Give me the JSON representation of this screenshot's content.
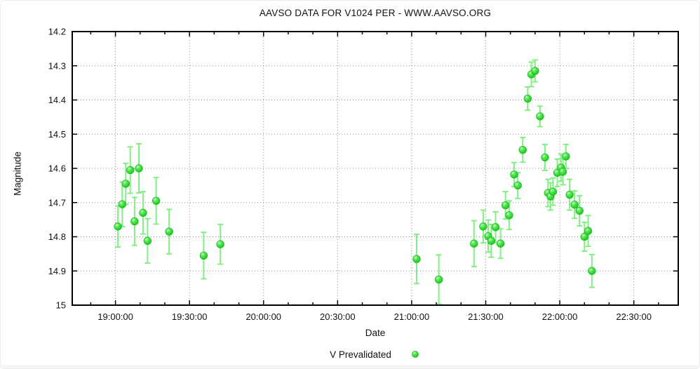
{
  "chart_data": {
    "type": "scatter",
    "title": "AAVSO DATA FOR V1024 PER - WWW.AAVSO.ORG",
    "xlabel": "Date",
    "ylabel": "Magnitude",
    "y_inverted": true,
    "ylim": [
      14.2,
      15.0
    ],
    "y_tick_labels": [
      "14.2",
      "14.3",
      "14.4",
      "14.5",
      "14.6",
      "14.7",
      "14.8",
      "14.9",
      "15"
    ],
    "x_tick_labels": [
      "19:00:00",
      "19:30:00",
      "20:00:00",
      "20:30:00",
      "21:00:00",
      "21:30:00",
      "22:00:00",
      "22:30:00"
    ],
    "x_range_minutes": [
      1122.5,
      1368
    ],
    "x_major_tick_minutes": 30,
    "x_minor_tick_minutes": 10,
    "grid": "dotted",
    "legend": {
      "label": "V Prevalidated",
      "position": "bottom-center"
    },
    "colors": {
      "marker": "#2ed32e",
      "marker_edge": "#1fbd1f",
      "marker_highlight": "#d6ffd6",
      "error_bar": "#82ef82",
      "axis": "#000000",
      "grid": "#8a8a8a",
      "text": "#111111",
      "background": "#ffffff"
    },
    "series": [
      {
        "name": "V Prevalidated",
        "marker": "circle",
        "points": [
          {
            "time": "19:01:00",
            "mag": 14.77,
            "err": 0.06
          },
          {
            "time": "19:02:45",
            "mag": 14.705,
            "err": 0.065
          },
          {
            "time": "19:04:10",
            "mag": 14.645,
            "err": 0.06
          },
          {
            "time": "19:06:00",
            "mag": 14.605,
            "err": 0.068
          },
          {
            "time": "19:07:45",
            "mag": 14.755,
            "err": 0.07
          },
          {
            "time": "19:09:30",
            "mag": 14.6,
            "err": 0.072
          },
          {
            "time": "19:11:10",
            "mag": 14.73,
            "err": 0.062
          },
          {
            "time": "19:13:00",
            "mag": 14.812,
            "err": 0.065
          },
          {
            "time": "19:16:30",
            "mag": 14.695,
            "err": 0.068
          },
          {
            "time": "19:21:45",
            "mag": 14.785,
            "err": 0.065
          },
          {
            "time": "19:35:45",
            "mag": 14.855,
            "err": 0.068
          },
          {
            "time": "19:42:30",
            "mag": 14.822,
            "err": 0.058
          },
          {
            "time": "21:02:00",
            "mag": 14.865,
            "err": 0.072
          },
          {
            "time": "21:11:00",
            "mag": 14.925,
            "err": 0.072
          },
          {
            "time": "21:25:15",
            "mag": 14.82,
            "err": 0.067
          },
          {
            "time": "21:29:00",
            "mag": 14.77,
            "err": 0.048
          },
          {
            "time": "21:31:00",
            "mag": 14.798,
            "err": 0.047
          },
          {
            "time": "21:32:15",
            "mag": 14.812,
            "err": 0.048
          },
          {
            "time": "21:34:00",
            "mag": 14.772,
            "err": 0.045
          },
          {
            "time": "21:36:00",
            "mag": 14.82,
            "err": 0.043
          },
          {
            "time": "21:38:00",
            "mag": 14.708,
            "err": 0.04
          },
          {
            "time": "21:39:30",
            "mag": 14.737,
            "err": 0.042
          },
          {
            "time": "21:41:30",
            "mag": 14.618,
            "err": 0.035
          },
          {
            "time": "21:43:00",
            "mag": 14.65,
            "err": 0.038
          },
          {
            "time": "21:45:00",
            "mag": 14.546,
            "err": 0.036
          },
          {
            "time": "21:47:00",
            "mag": 14.396,
            "err": 0.034
          },
          {
            "time": "21:48:30",
            "mag": 14.325,
            "err": 0.036
          },
          {
            "time": "21:50:00",
            "mag": 14.315,
            "err": 0.032
          },
          {
            "time": "21:52:00",
            "mag": 14.448,
            "err": 0.03
          },
          {
            "time": "21:54:00",
            "mag": 14.568,
            "err": 0.038
          },
          {
            "time": "21:55:15",
            "mag": 14.672,
            "err": 0.04
          },
          {
            "time": "21:56:15",
            "mag": 14.682,
            "err": 0.04
          },
          {
            "time": "21:57:15",
            "mag": 14.668,
            "err": 0.04
          },
          {
            "time": "21:59:00",
            "mag": 14.613,
            "err": 0.04
          },
          {
            "time": "22:00:30",
            "mag": 14.598,
            "err": 0.04
          },
          {
            "time": "22:01:15",
            "mag": 14.61,
            "err": 0.038
          },
          {
            "time": "22:02:30",
            "mag": 14.565,
            "err": 0.035
          },
          {
            "time": "22:04:00",
            "mag": 14.677,
            "err": 0.045
          },
          {
            "time": "22:06:00",
            "mag": 14.706,
            "err": 0.04
          },
          {
            "time": "22:08:00",
            "mag": 14.724,
            "err": 0.044
          },
          {
            "time": "22:10:00",
            "mag": 14.8,
            "err": 0.042
          },
          {
            "time": "22:11:30",
            "mag": 14.783,
            "err": 0.045
          },
          {
            "time": "22:13:00",
            "mag": 14.9,
            "err": 0.048
          }
        ]
      }
    ]
  }
}
